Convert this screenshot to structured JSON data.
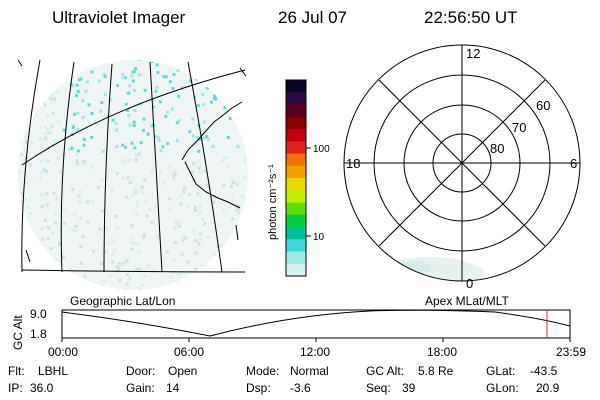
{
  "header": {
    "title": "Ultraviolet Imager",
    "date": "26 Jul 07",
    "time": "22:56:50 UT"
  },
  "colorbar": {
    "unit_label": "photon cm⁻²s⁻¹",
    "ticks": [
      "100",
      "10"
    ],
    "colors": [
      "#0a0520",
      "#2a0a40",
      "#5a0020",
      "#8c0000",
      "#c00010",
      "#e02020",
      "#f07000",
      "#f0a000",
      "#e8d800",
      "#c0f000",
      "#60e000",
      "#00d040",
      "#00c0a0",
      "#40d8d8",
      "#a0e8e8",
      "#d8f0f0"
    ]
  },
  "polar_plot": {
    "mlt_labels": [
      "12",
      "18",
      "6",
      "0"
    ],
    "mlat_labels": [
      "60",
      "70",
      "80"
    ]
  },
  "left_panel": {
    "label": "Geographic Lat/Lon"
  },
  "right_panel": {
    "label": "Apex MLat/MLT"
  },
  "altitude_plot": {
    "axis_title": "GC Alt",
    "y_ticks": [
      "9.0",
      "1.8"
    ],
    "x_ticks": [
      "00:00",
      "06:00",
      "12:00",
      "18:00",
      "23:59"
    ],
    "marker_color": "#d03030"
  },
  "status": {
    "flt_label": "Flt:",
    "flt_value": "LBHL",
    "door_label": "Door:",
    "door_value": "Open",
    "mode_label": "Mode:",
    "mode_value": "Normal",
    "gcalt_label": "GC Alt:",
    "gcalt_value": "5.8 Re",
    "glat_label": "GLat:",
    "glat_value": "-43.5",
    "ip_label": "IP:",
    "ip_value": "36.0",
    "gain_label": "Gain:",
    "gain_value": "14",
    "dsp_label": "Dsp:",
    "dsp_value": "-3.6",
    "seq_label": "Seq:",
    "seq_value": "39",
    "glon_label": "GLon:",
    "glon_value": "20.9"
  }
}
